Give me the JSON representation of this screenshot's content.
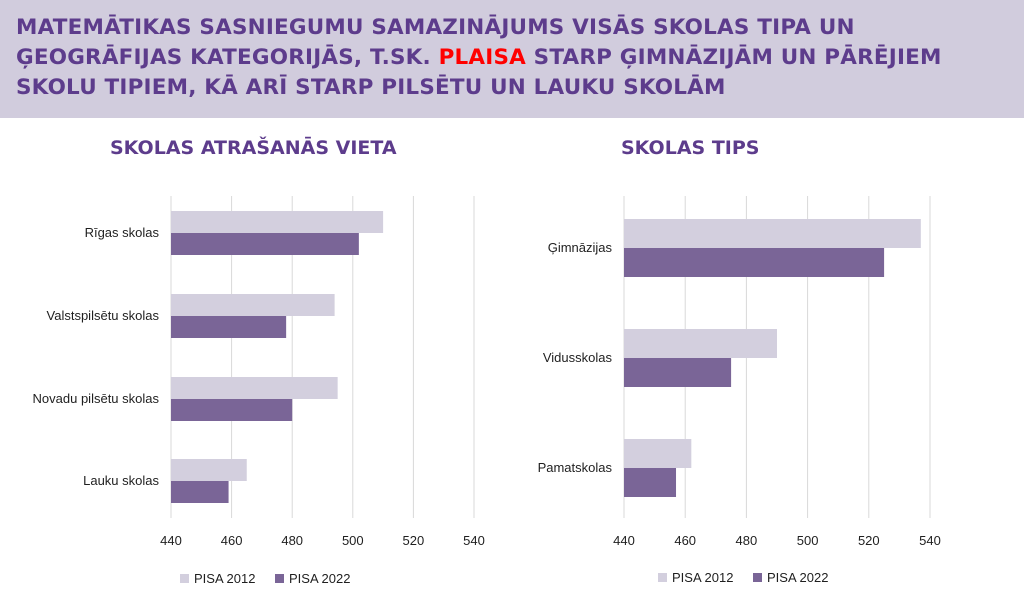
{
  "header": {
    "title_part1": "MATEMĀTIKAS SASNIEGUMU SAMAZINĀJUMS VISĀS SKOLAS TIPA UN ĢEOGRĀFIJAS KATEGORIJĀS, T.SK. ",
    "title_highlight": "PLAISA",
    "title_part2": " STARP ĢIMNĀZIJĀM UN PĀRĒJIEM SKOLU TIPIEM, KĀ ARĪ STARP PILSĒTU UN LAUKU SKOLĀM"
  },
  "colors": {
    "header_bg": "#d1ccdd",
    "title_text": "#5d3c8c",
    "highlight": "#ff0000",
    "pisa2012": "#d3cfde",
    "pisa2022": "#7a6597",
    "gridline": "#d9d9d9"
  },
  "chart_data": [
    {
      "type": "bar",
      "orientation": "horizontal",
      "title": "SKOLAS ATRAŠANĀS VIETA",
      "categories": [
        "Rīgas skolas",
        "Valstspilsētu skolas",
        "Novadu pilsētu skolas",
        "Lauku skolas"
      ],
      "series": [
        {
          "name": "PISA 2012",
          "values": [
            510,
            494,
            495,
            465
          ]
        },
        {
          "name": "PISA 2022",
          "values": [
            502,
            478,
            480,
            459
          ]
        }
      ],
      "xlim": [
        440,
        540
      ],
      "xticks": [
        "440",
        "460",
        "480",
        "500",
        "520",
        "540"
      ],
      "grid": true,
      "legend": "bottom"
    },
    {
      "type": "bar",
      "orientation": "horizontal",
      "title": "SKOLAS TIPS",
      "categories": [
        "Ģimnāzijas",
        "Vidusskolas",
        "Pamatskolas"
      ],
      "series": [
        {
          "name": "PISA 2012",
          "values": [
            537,
            490,
            462
          ]
        },
        {
          "name": "PISA 2022",
          "values": [
            525,
            475,
            457
          ]
        }
      ],
      "xlim": [
        440,
        540
      ],
      "xticks": [
        "440",
        "460",
        "480",
        "500",
        "520",
        "540"
      ],
      "grid": true,
      "legend": "bottom"
    }
  ]
}
